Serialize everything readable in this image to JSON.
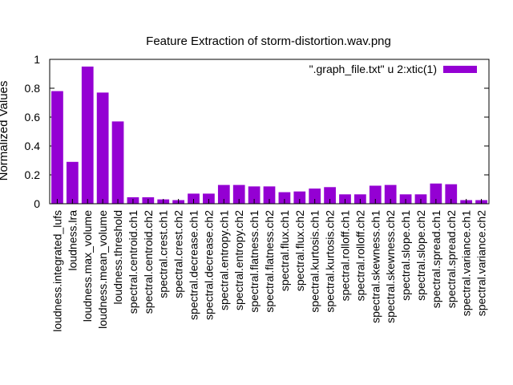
{
  "chart_data": {
    "type": "bar",
    "title": "Feature Extraction of storm-distortion.wav.png",
    "ylabel": "Normalized Values",
    "xlabel": "",
    "ylim": [
      0,
      1
    ],
    "yticks": [
      "0",
      "0.2",
      "0.4",
      "0.6",
      "0.8",
      "1"
    ],
    "legend": {
      "label": "\".graph_file.txt\" u 2:xtic(1)",
      "position": "top-right"
    },
    "bar_color": "#9400d3",
    "categories": [
      "loudness.integrated_lufs",
      "loudness.lra",
      "loudness.max_volume",
      "loudness.mean_volume",
      "loudness.threshold",
      "spectral.centroid.ch1",
      "spectral.centroid.ch2",
      "spectral.crest.ch1",
      "spectral.crest.ch2",
      "spectral.decrease.ch1",
      "spectral.decrease.ch2",
      "spectral.entropy.ch1",
      "spectral.entropy.ch2",
      "spectral.flatness.ch1",
      "spectral.flatness.ch2",
      "spectral.flux.ch1",
      "spectral.flux.ch2",
      "spectral.kurtosis.ch1",
      "spectral.kurtosis.ch2",
      "spectral.rolloff.ch1",
      "spectral.rolloff.ch2",
      "spectral.skewness.ch1",
      "spectral.skewness.ch2",
      "spectral.slope.ch1",
      "spectral.slope.ch2",
      "spectral.spread.ch1",
      "spectral.spread.ch2",
      "spectral.variance.ch1",
      "spectral.variance.ch2"
    ],
    "values": [
      0.78,
      0.29,
      0.95,
      0.77,
      0.57,
      0.045,
      0.045,
      0.03,
      0.025,
      0.07,
      0.07,
      0.13,
      0.13,
      0.12,
      0.12,
      0.08,
      0.085,
      0.105,
      0.115,
      0.065,
      0.065,
      0.125,
      0.13,
      0.065,
      0.065,
      0.14,
      0.135,
      0.025,
      0.025
    ]
  }
}
